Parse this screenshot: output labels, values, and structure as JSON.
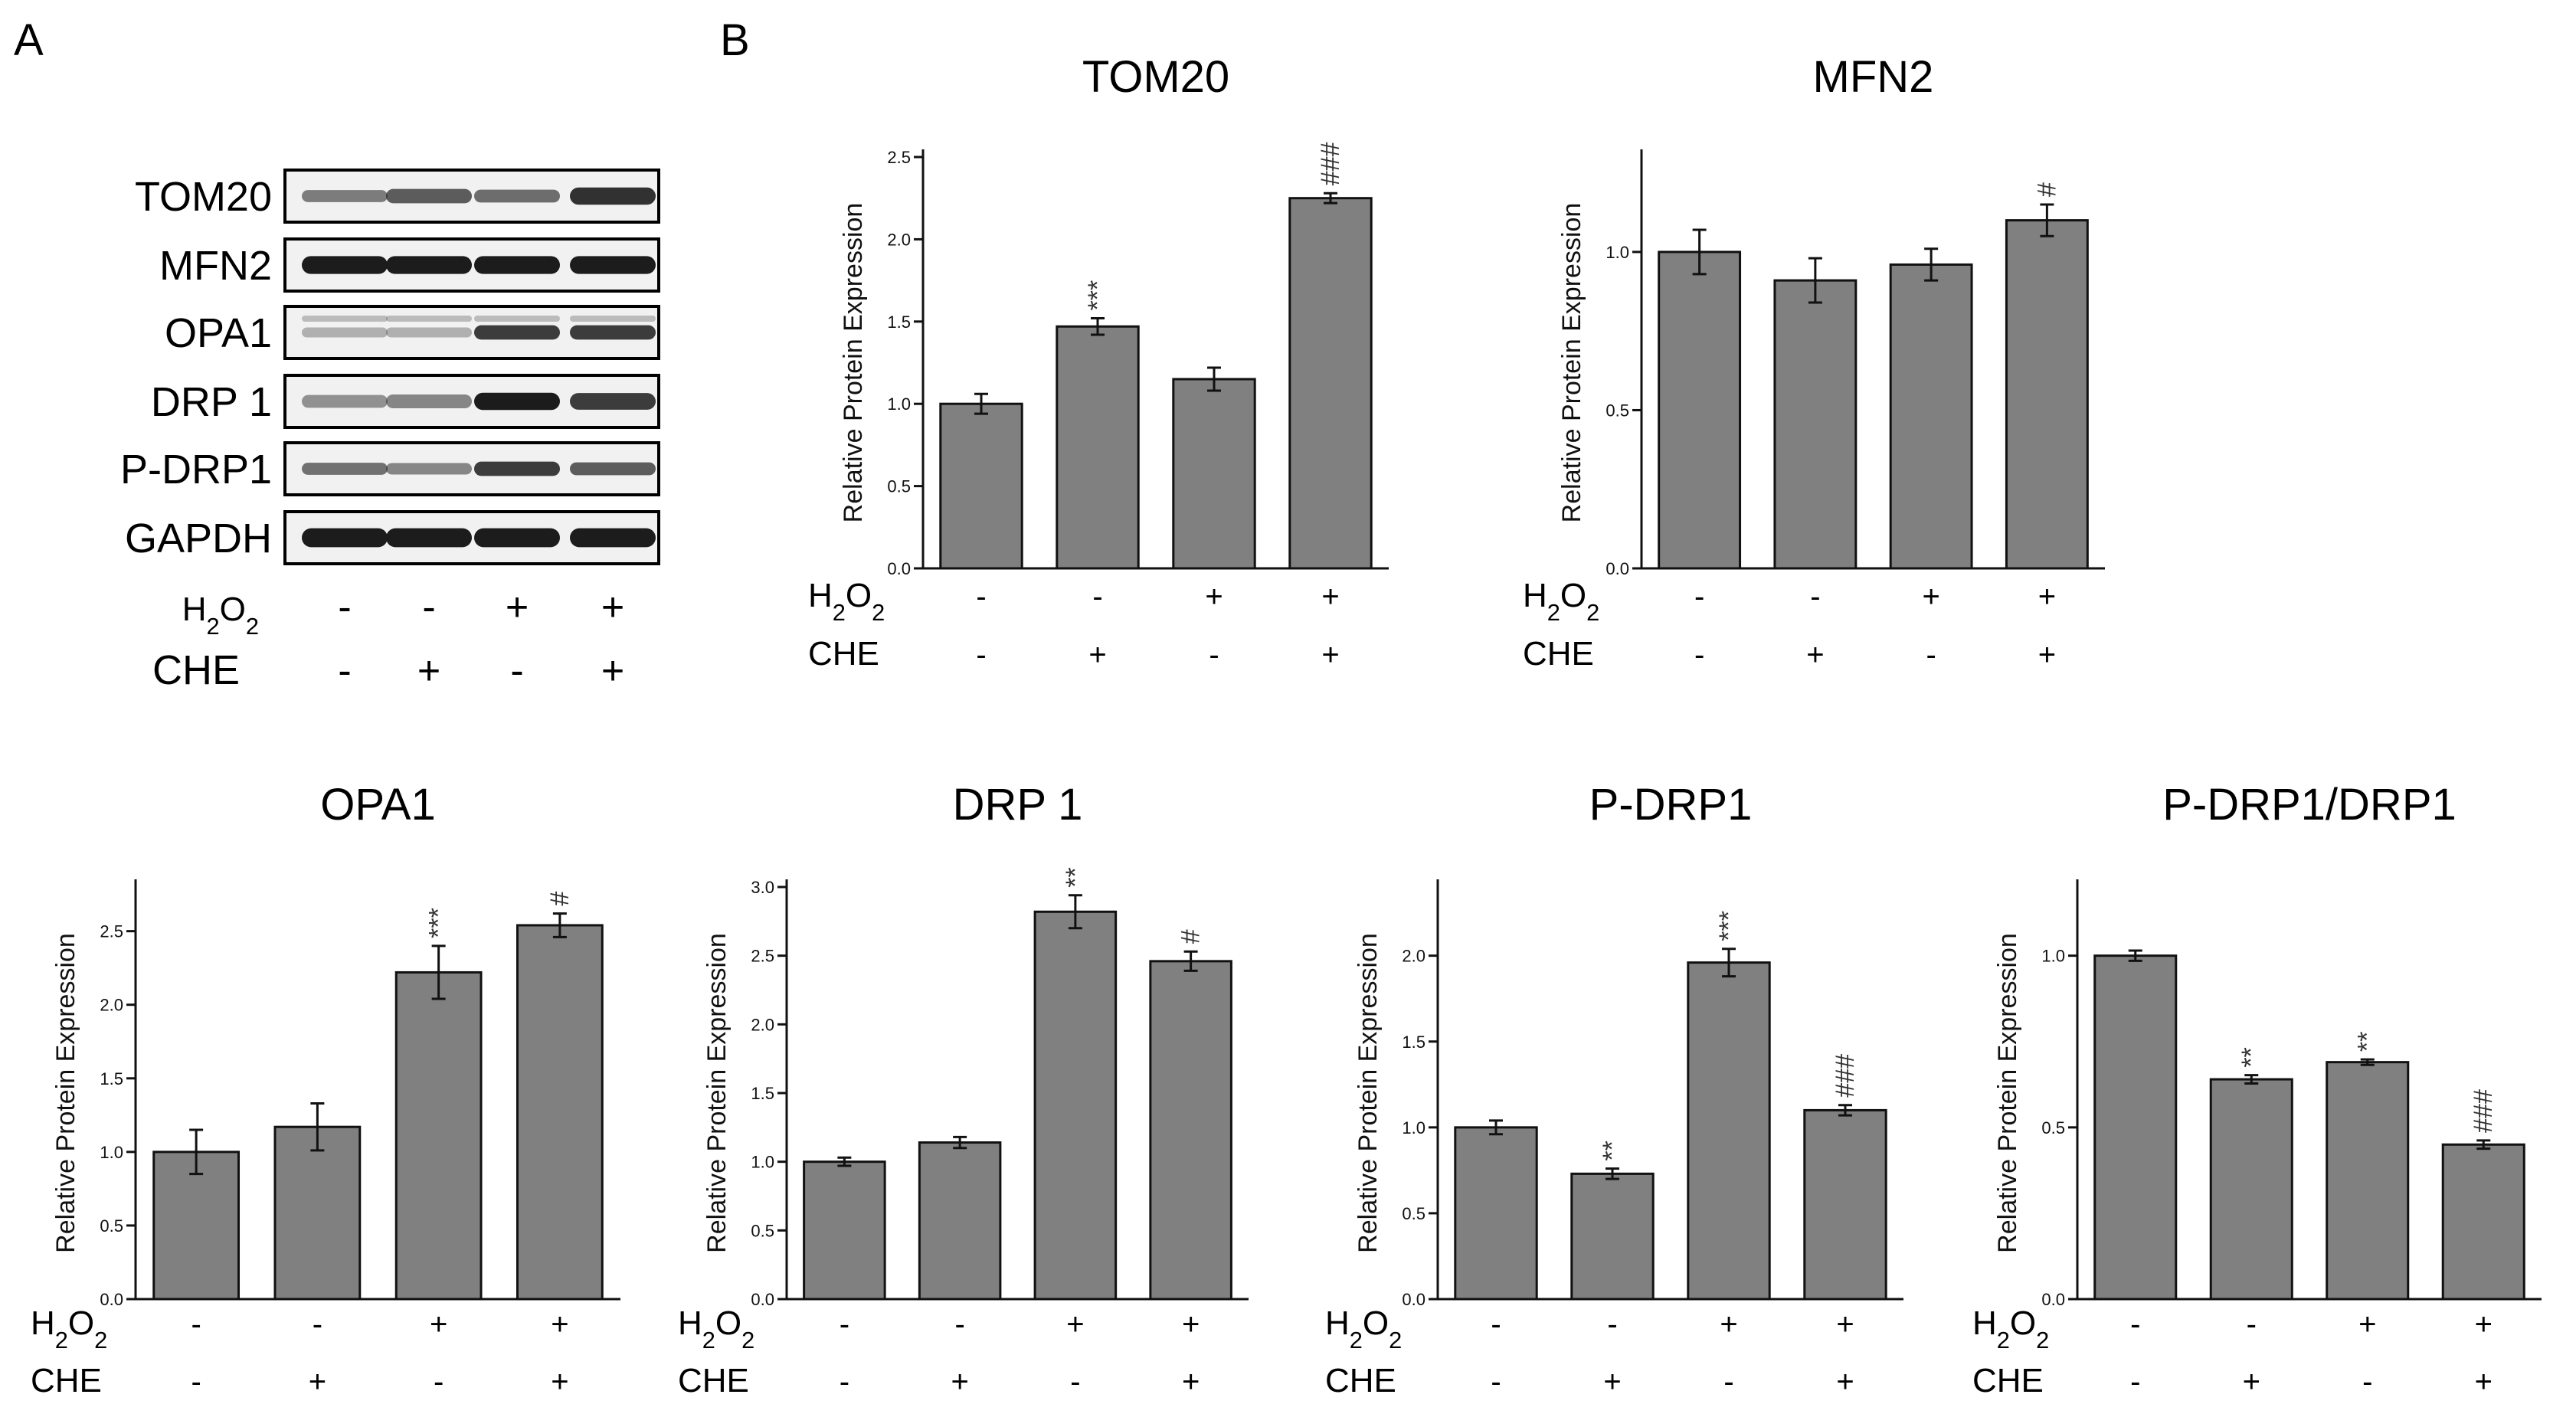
{
  "panels": {
    "a": "A",
    "b": "B"
  },
  "blot": {
    "proteins": [
      "TOM20",
      "MFN2",
      "OPA1",
      "DRP 1",
      "P-DRP1",
      "GAPDH"
    ],
    "h2o2_label": "H2O2",
    "che_label": "CHE",
    "h2o2_signs": [
      "-",
      "-",
      "+",
      "+"
    ],
    "che_signs": [
      "-",
      "+",
      "-",
      "+"
    ]
  },
  "chart_data": [
    {
      "type": "bar",
      "title": "TOM20",
      "ylabel": "Relative Protein Expression",
      "ylim": [
        0,
        2.5
      ],
      "yticks": [
        0.0,
        0.5,
        1.0,
        1.5,
        2.0,
        2.5
      ],
      "ytick_labels": [
        "0.0",
        "0.5",
        "1.0",
        "1.5",
        "2.0",
        "2.5"
      ],
      "values": [
        1.0,
        1.47,
        1.15,
        2.25
      ],
      "errors": [
        0.06,
        0.05,
        0.07,
        0.03
      ],
      "significance": [
        "",
        "***",
        "",
        "###"
      ],
      "h2o2": [
        "-",
        "-",
        "+",
        "+"
      ],
      "che": [
        "-",
        "+",
        "-",
        "+"
      ]
    },
    {
      "type": "bar",
      "title": "MFN2",
      "ylabel": "Relative Protein Expression",
      "ylim": [
        0,
        1.3
      ],
      "yticks": [
        0.0,
        0.5,
        1.0
      ],
      "ytick_labels": [
        "0.0",
        "0.5",
        "1.0"
      ],
      "values": [
        1.0,
        0.91,
        0.96,
        1.1
      ],
      "errors": [
        0.07,
        0.07,
        0.05,
        0.05
      ],
      "significance": [
        "",
        "",
        "",
        "#"
      ],
      "h2o2": [
        "-",
        "-",
        "+",
        "+"
      ],
      "che": [
        "-",
        "+",
        "-",
        "+"
      ]
    },
    {
      "type": "bar",
      "title": "OPA1",
      "ylabel": "Relative Protein Expression",
      "ylim": [
        0,
        2.8
      ],
      "yticks": [
        0.0,
        0.5,
        1.0,
        1.5,
        2.0,
        2.5
      ],
      "ytick_labels": [
        "0.0",
        "0.5",
        "1.0",
        "1.5",
        "2.0",
        "2.5"
      ],
      "values": [
        1.0,
        1.17,
        2.22,
        2.54
      ],
      "errors": [
        0.15,
        0.16,
        0.18,
        0.08
      ],
      "significance": [
        "",
        "",
        "***",
        "#"
      ],
      "h2o2": [
        "-",
        "-",
        "+",
        "+"
      ],
      "che": [
        "-",
        "+",
        "-",
        "+"
      ]
    },
    {
      "type": "bar",
      "title": "DRP 1",
      "ylabel": "Relative Protein Expression",
      "ylim": [
        0,
        3.0
      ],
      "yticks": [
        0.0,
        0.5,
        1.0,
        1.5,
        2.0,
        2.5,
        3.0
      ],
      "ytick_labels": [
        "0.0",
        "0.5",
        "1.0",
        "1.5",
        "2.0",
        "2.5",
        "3.0"
      ],
      "values": [
        1.0,
        1.14,
        2.82,
        2.46
      ],
      "errors": [
        0.03,
        0.04,
        0.12,
        0.07
      ],
      "significance": [
        "",
        "",
        "**",
        "#"
      ],
      "h2o2": [
        "-",
        "-",
        "+",
        "+"
      ],
      "che": [
        "-",
        "+",
        "-",
        "+"
      ]
    },
    {
      "type": "bar",
      "title": "P-DRP1",
      "ylabel": "Relative Protein Expression",
      "ylim": [
        0,
        2.4
      ],
      "yticks": [
        0.0,
        0.5,
        1.0,
        1.5,
        2.0
      ],
      "ytick_labels": [
        "0.0",
        "0.5",
        "1.0",
        "1.5",
        "2.0"
      ],
      "values": [
        1.0,
        0.73,
        1.96,
        1.1
      ],
      "errors": [
        0.04,
        0.03,
        0.08,
        0.03
      ],
      "significance": [
        "",
        "**",
        "***",
        "###"
      ],
      "h2o2": [
        "-",
        "-",
        "+",
        "+"
      ],
      "che": [
        "-",
        "+",
        "-",
        "+"
      ]
    },
    {
      "type": "bar",
      "title": "P-DRP1/DRP1",
      "ylabel": "Relative Protein Expression",
      "ylim": [
        0,
        1.2
      ],
      "yticks": [
        0.0,
        0.5,
        1.0
      ],
      "ytick_labels": [
        "0.0",
        "0.5",
        "1.0"
      ],
      "values": [
        1.0,
        0.64,
        0.69,
        0.45
      ],
      "errors": [
        0.015,
        0.012,
        0.008,
        0.012
      ],
      "significance": [
        "",
        "**",
        "**",
        "###"
      ],
      "h2o2": [
        "-",
        "-",
        "+",
        "+"
      ],
      "che": [
        "-",
        "+",
        "-",
        "+"
      ]
    }
  ],
  "colors": {
    "bar": "#808080",
    "axis": "#111111",
    "blot_bg": "#f1f1f1",
    "band": "#1c1c1c"
  }
}
